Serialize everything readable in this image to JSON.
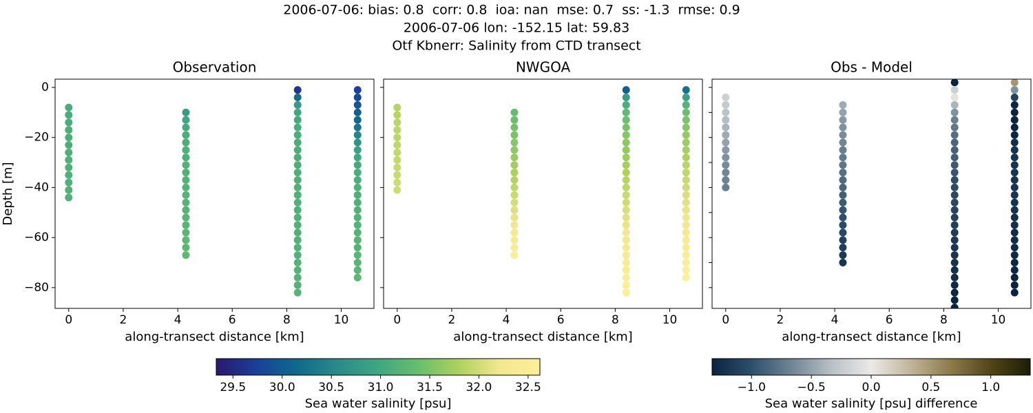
{
  "title": [
    "2006-07-06: bias: 0.8  corr: 0.8  ioa: nan  mse: 0.7  ss: -1.3  rmse: 0.9",
    "2006-07-06 lon: -152.15 lat: 59.83",
    "Otf Kbnerr: Salinity from CTD transect"
  ],
  "chart_data": [
    {
      "type": "scatter",
      "title": "Observation",
      "xlabel": "along-transect distance [km]",
      "ylabel": "Depth [m]",
      "cmap": "haline",
      "xlim": [
        -0.5,
        11.2
      ],
      "ylim": [
        -88.3,
        3.3
      ],
      "xticks": [
        0,
        2,
        4,
        6,
        8,
        10
      ],
      "yticks": [
        0,
        {
          "value": -20,
          "label": "−20"
        },
        {
          "value": -40,
          "label": "−40"
        },
        {
          "value": -60,
          "label": "−60"
        },
        {
          "value": -80,
          "label": "−80"
        }
      ],
      "ytick_labels": true,
      "series": [
        {
          "x": 0,
          "y": [
            -8,
            -11,
            -14,
            -17,
            -20,
            -23,
            -26,
            -29,
            -32,
            -35,
            -38,
            -41,
            -44
          ],
          "values": [
            31.08,
            31.1,
            31.1,
            31.11,
            31.12,
            31.12,
            31.13,
            31.14,
            31.14,
            31.15,
            31.15,
            31.16,
            31.16
          ]
        },
        {
          "x": 4.3,
          "y": [
            -10,
            -13,
            -16,
            -19,
            -22,
            -25,
            -28,
            -31,
            -34,
            -37,
            -40,
            -43,
            -46,
            -49,
            -52,
            -55,
            -58,
            -61,
            -64,
            -67
          ],
          "values": [
            30.8,
            30.95,
            31.05,
            31.1,
            31.12,
            31.14,
            31.15,
            31.16,
            31.17,
            31.18,
            31.19,
            31.2,
            31.21,
            31.22,
            31.23,
            31.24,
            31.25,
            31.26,
            31.27,
            31.28
          ]
        },
        {
          "x": 8.4,
          "y": [
            -1,
            -4,
            -7,
            -10,
            -13,
            -16,
            -19,
            -22,
            -25,
            -28,
            -31,
            -34,
            -37,
            -40,
            -43,
            -46,
            -49,
            -52,
            -55,
            -58,
            -61,
            -64,
            -67,
            -70,
            -73,
            -76,
            -79,
            -82
          ],
          "values": [
            29.65,
            30.2,
            30.8,
            31.0,
            31.05,
            31.08,
            31.1,
            31.1,
            31.11,
            31.12,
            31.12,
            31.13,
            31.13,
            31.14,
            31.14,
            31.15,
            31.15,
            31.16,
            31.16,
            31.17,
            31.17,
            31.18,
            31.18,
            31.19,
            31.19,
            31.2,
            31.2,
            31.21
          ]
        },
        {
          "x": 10.6,
          "y": [
            -1,
            -4,
            -7,
            -10,
            -13,
            -16,
            -19,
            -22,
            -25,
            -28,
            -31,
            -34,
            -37,
            -40,
            -43,
            -46,
            -49,
            -52,
            -55,
            -58,
            -61,
            -64,
            -67,
            -70,
            -73,
            -76
          ],
          "values": [
            29.75,
            29.85,
            29.95,
            30.05,
            30.15,
            30.3,
            30.5,
            30.7,
            30.9,
            31.0,
            31.05,
            31.1,
            31.12,
            31.14,
            31.15,
            31.16,
            31.17,
            31.18,
            31.19,
            31.2,
            31.21,
            31.22,
            31.23,
            31.24,
            31.25,
            31.26
          ]
        }
      ]
    },
    {
      "type": "scatter",
      "title": "NWGOA",
      "xlabel": "along-transect distance [km]",
      "cmap": "haline",
      "xlim": [
        -0.5,
        11.2
      ],
      "ylim": [
        -88.3,
        3.3
      ],
      "xticks": [
        0,
        2,
        4,
        6,
        8,
        10
      ],
      "yticks": [
        0,
        -20,
        -40,
        -60,
        -80
      ],
      "ytick_labels": false,
      "series": [
        {
          "x": 0,
          "y": [
            -8,
            -11,
            -14,
            -17,
            -20,
            -23,
            -26,
            -29,
            -32,
            -35,
            -38,
            -41
          ],
          "values": [
            31.85,
            31.86,
            31.87,
            31.88,
            31.89,
            31.9,
            31.92,
            31.93,
            31.95,
            31.96,
            31.98,
            32.0
          ]
        },
        {
          "x": 4.3,
          "y": [
            -10,
            -13,
            -16,
            -19,
            -22,
            -25,
            -28,
            -31,
            -34,
            -37,
            -40,
            -43,
            -46,
            -49,
            -52,
            -55,
            -58,
            -61,
            -64,
            -67
          ],
          "values": [
            31.35,
            31.4,
            31.45,
            31.5,
            31.55,
            31.6,
            31.66,
            31.72,
            31.78,
            31.84,
            31.9,
            31.96,
            32.02,
            32.08,
            32.14,
            32.2,
            32.28,
            32.36,
            32.44,
            32.5
          ]
        },
        {
          "x": 8.4,
          "y": [
            -1,
            -4,
            -7,
            -10,
            -13,
            -16,
            -19,
            -22,
            -25,
            -28,
            -31,
            -34,
            -37,
            -40,
            -43,
            -46,
            -49,
            -52,
            -55,
            -58,
            -61,
            -64,
            -67,
            -70,
            -73,
            -76,
            -79,
            -82
          ],
          "values": [
            30.05,
            30.8,
            31.1,
            31.3,
            31.4,
            31.48,
            31.55,
            31.6,
            31.65,
            31.7,
            31.75,
            31.8,
            31.85,
            31.9,
            31.95,
            32.0,
            32.05,
            32.1,
            32.15,
            32.2,
            32.25,
            32.3,
            32.35,
            32.4,
            32.45,
            32.5,
            32.55,
            32.6
          ]
        },
        {
          "x": 10.6,
          "y": [
            -1,
            -4,
            -7,
            -10,
            -13,
            -16,
            -19,
            -22,
            -25,
            -28,
            -31,
            -34,
            -37,
            -40,
            -43,
            -46,
            -49,
            -52,
            -55,
            -58,
            -61,
            -64,
            -67,
            -70,
            -73,
            -76
          ],
          "values": [
            30.25,
            30.9,
            31.2,
            31.4,
            31.5,
            31.57,
            31.64,
            31.7,
            31.75,
            31.8,
            31.85,
            31.9,
            31.95,
            32.0,
            32.05,
            32.1,
            32.15,
            32.2,
            32.25,
            32.3,
            32.35,
            32.4,
            32.45,
            32.5,
            32.55,
            32.6
          ]
        }
      ]
    },
    {
      "type": "scatter",
      "title": "Obs - Model",
      "xlabel": "along-transect distance [km]",
      "cmap": "diff",
      "xlim": [
        -0.5,
        11.2
      ],
      "ylim": [
        -88.3,
        3.3
      ],
      "xticks": [
        0,
        2,
        4,
        6,
        8,
        10
      ],
      "yticks": [
        0,
        -10,
        -20,
        -30,
        -40,
        -50,
        -60,
        -70,
        -80
      ],
      "ytick_labels": false,
      "series": [
        {
          "x": 0,
          "y": [
            -4,
            -7,
            -10,
            -13,
            -16,
            -19,
            -22,
            -25,
            -28,
            -31,
            -34,
            -37,
            -40
          ],
          "values": [
            -0.2,
            -0.25,
            -0.3,
            -0.35,
            -0.4,
            -0.45,
            -0.5,
            -0.55,
            -0.6,
            -0.63,
            -0.66,
            -0.68,
            -0.7
          ]
        },
        {
          "x": 4.3,
          "y": [
            -7,
            -10,
            -13,
            -16,
            -19,
            -22,
            -25,
            -28,
            -31,
            -34,
            -37,
            -40,
            -43,
            -46,
            -49,
            -52,
            -55,
            -58,
            -61,
            -64,
            -67,
            -70
          ],
          "values": [
            -0.45,
            -0.5,
            -0.55,
            -0.6,
            -0.63,
            -0.66,
            -0.7,
            -0.73,
            -0.76,
            -0.8,
            -0.83,
            -0.86,
            -0.9,
            -0.93,
            -0.96,
            -1.0,
            -1.03,
            -1.06,
            -1.1,
            -1.13,
            -1.16,
            -1.2
          ]
        },
        {
          "x": 8.4,
          "y": [
            2,
            -1,
            -4,
            -7,
            -10,
            -13,
            -16,
            -19,
            -22,
            -25,
            -28,
            -31,
            -34,
            -37,
            -40,
            -43,
            -46,
            -49,
            -52,
            -55,
            -58,
            -61,
            -64,
            -67,
            -70,
            -73,
            -76,
            -79,
            -82,
            -85,
            -88
          ],
          "values": [
            -1.4,
            -0.2,
            0.05,
            -0.4,
            -0.6,
            -0.7,
            -0.75,
            -0.8,
            -0.85,
            -0.88,
            -0.9,
            -0.93,
            -0.96,
            -1.0,
            -1.02,
            -1.04,
            -1.06,
            -1.08,
            -1.1,
            -1.12,
            -1.14,
            -1.16,
            -1.18,
            -1.2,
            -1.22,
            -1.24,
            -1.26,
            -1.28,
            -1.3,
            -1.32,
            -1.34
          ]
        },
        {
          "x": 10.6,
          "y": [
            2,
            -1,
            -4,
            -7,
            -10,
            -13,
            -16,
            -19,
            -22,
            -25,
            -28,
            -31,
            -34,
            -37,
            -40,
            -43,
            -46,
            -49,
            -52,
            -55,
            -58,
            -61,
            -64,
            -67,
            -70,
            -73,
            -76,
            -79,
            -82
          ],
          "values": [
            0.5,
            -0.6,
            -1.1,
            -1.3,
            -1.4,
            -1.4,
            -1.35,
            -1.3,
            -1.25,
            -1.22,
            -1.2,
            -1.2,
            -1.2,
            -1.2,
            -1.2,
            -1.2,
            -1.22,
            -1.22,
            -1.24,
            -1.24,
            -1.26,
            -1.26,
            -1.28,
            -1.28,
            -1.3,
            -1.3,
            -1.32,
            -1.32,
            -1.34
          ]
        }
      ]
    }
  ],
  "colorbars": [
    {
      "cmap": "haline",
      "label": "Sea water salinity [psu]",
      "clim": [
        29.33,
        32.62
      ],
      "colors": [
        "#2a186c",
        "#1a3f9a",
        "#0f6a8c",
        "#2b8a89",
        "#3fa682",
        "#68be6d",
        "#aed15e",
        "#f2e78f",
        "#fdef9a"
      ],
      "ticks": [
        29.5,
        {
          "value": 30,
          "label": "30.0"
        },
        30.5,
        {
          "value": 31,
          "label": "31.0"
        },
        31.5,
        {
          "value": 32,
          "label": "32.0"
        },
        32.5
      ]
    },
    {
      "cmap": "diff",
      "label": "Sea water salinity [psu] difference",
      "clim": [
        -1.33,
        1.33
      ],
      "colors": [
        "#08243f",
        "#2e4f6c",
        "#6f8594",
        "#b8c0c6",
        "#ece9e6",
        "#c1b49a",
        "#8c7a4a",
        "#524518",
        "#1c1e07"
      ],
      "ticks": [
        {
          "value": -1,
          "label": "−1.0"
        },
        {
          "value": -0.5,
          "label": "−0.5"
        },
        {
          "value": 0,
          "label": "0.0"
        },
        0.5,
        {
          "value": 1,
          "label": "1.0"
        }
      ]
    }
  ]
}
